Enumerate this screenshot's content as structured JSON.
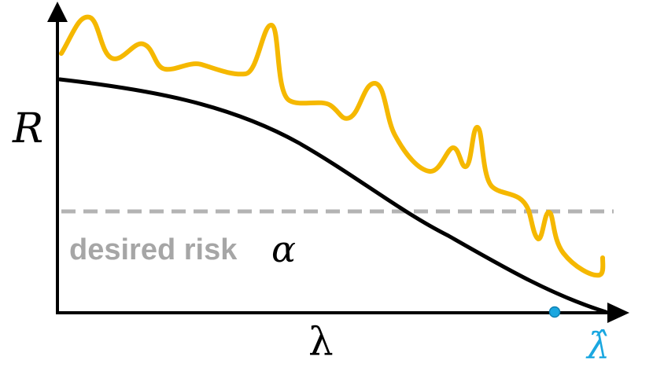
{
  "diagram": {
    "y_axis_symbol": "R",
    "x_axis_symbol": "λ",
    "threshold_text": "desired risk",
    "threshold_symbol": "α",
    "estimate_symbol": "λ̂"
  },
  "colors": {
    "empirical_curve": "#f5b800",
    "true_curve": "#000000",
    "threshold_line": "#b3b3b3",
    "threshold_text": "#a6a6a6",
    "estimate": "#1aa7e0"
  }
}
